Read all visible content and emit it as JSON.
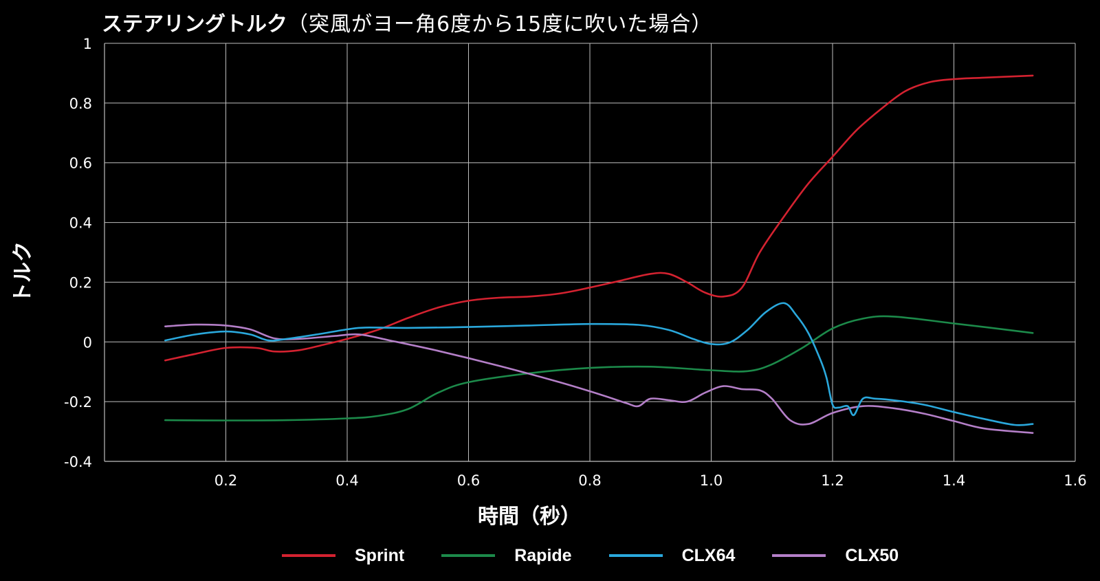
{
  "chart_data": {
    "type": "line",
    "title": "ステアリングトルク",
    "subtitle": "（突風がヨー角6度から15度に吹いた場合）",
    "xlabel": "時間（秒）",
    "ylabel": "トルク",
    "xlim": [
      0,
      1.6
    ],
    "ylim": [
      -0.4,
      1
    ],
    "x_ticks": [
      "0.2",
      "0.4",
      "0.6",
      "0.8",
      "1.0",
      "1.2",
      "1.4",
      "1.6"
    ],
    "y_ticks": [
      "-0.4",
      "-0.2",
      "0",
      "0.2",
      "0.4",
      "0.6",
      "0.8",
      "1"
    ],
    "grid": true,
    "legend_position": "bottom",
    "series": [
      {
        "name": "Sprint",
        "color": "#d42230",
        "x": [
          0.1,
          0.15,
          0.2,
          0.25,
          0.28,
          0.32,
          0.36,
          0.4,
          0.45,
          0.5,
          0.55,
          0.6,
          0.65,
          0.7,
          0.75,
          0.8,
          0.85,
          0.9,
          0.93,
          0.96,
          0.99,
          1.02,
          1.05,
          1.08,
          1.12,
          1.16,
          1.2,
          1.24,
          1.28,
          1.32,
          1.36,
          1.4,
          1.45,
          1.53
        ],
        "y": [
          -0.062,
          -0.04,
          -0.02,
          -0.02,
          -0.032,
          -0.028,
          -0.01,
          0.01,
          0.04,
          0.08,
          0.115,
          0.138,
          0.148,
          0.152,
          0.162,
          0.182,
          0.205,
          0.228,
          0.228,
          0.2,
          0.165,
          0.152,
          0.18,
          0.3,
          0.42,
          0.53,
          0.62,
          0.71,
          0.78,
          0.84,
          0.87,
          0.88,
          0.885,
          0.892
        ]
      },
      {
        "name": "Rapide",
        "color": "#1c8a4a",
        "x": [
          0.1,
          0.2,
          0.3,
          0.4,
          0.45,
          0.5,
          0.55,
          0.6,
          0.7,
          0.8,
          0.9,
          1.0,
          1.06,
          1.1,
          1.15,
          1.2,
          1.25,
          1.3,
          1.4,
          1.53
        ],
        "y": [
          -0.262,
          -0.263,
          -0.262,
          -0.256,
          -0.248,
          -0.225,
          -0.17,
          -0.135,
          -0.105,
          -0.087,
          -0.083,
          -0.095,
          -0.098,
          -0.075,
          -0.02,
          0.045,
          0.078,
          0.085,
          0.062,
          0.03
        ]
      },
      {
        "name": "CLX64",
        "color": "#2aa8dc",
        "x": [
          0.1,
          0.15,
          0.2,
          0.24,
          0.27,
          0.3,
          0.35,
          0.4,
          0.43,
          0.5,
          0.6,
          0.7,
          0.8,
          0.88,
          0.93,
          0.97,
          1.0,
          1.03,
          1.06,
          1.09,
          1.12,
          1.14,
          1.16,
          1.18,
          1.19,
          1.2,
          1.21,
          1.225,
          1.235,
          1.25,
          1.27,
          1.3,
          1.35,
          1.4,
          1.45,
          1.5,
          1.53
        ],
        "y": [
          0.005,
          0.025,
          0.035,
          0.025,
          0.005,
          0.01,
          0.025,
          0.042,
          0.048,
          0.047,
          0.05,
          0.055,
          0.06,
          0.057,
          0.04,
          0.01,
          -0.007,
          -0.002,
          0.04,
          0.1,
          0.13,
          0.09,
          0.03,
          -0.06,
          -0.12,
          -0.21,
          -0.22,
          -0.215,
          -0.245,
          -0.19,
          -0.19,
          -0.195,
          -0.21,
          -0.235,
          -0.258,
          -0.278,
          -0.275
        ]
      },
      {
        "name": "CLX50",
        "color": "#b47fc8",
        "x": [
          0.1,
          0.15,
          0.2,
          0.24,
          0.28,
          0.32,
          0.38,
          0.42,
          0.47,
          0.55,
          0.65,
          0.75,
          0.82,
          0.86,
          0.88,
          0.9,
          0.93,
          0.96,
          0.99,
          1.02,
          1.05,
          1.08,
          1.1,
          1.13,
          1.16,
          1.2,
          1.25,
          1.3,
          1.35,
          1.4,
          1.45,
          1.53
        ],
        "y": [
          0.052,
          0.058,
          0.055,
          0.042,
          0.012,
          0.01,
          0.02,
          0.025,
          0.005,
          -0.03,
          -0.08,
          -0.135,
          -0.178,
          -0.205,
          -0.215,
          -0.19,
          -0.195,
          -0.2,
          -0.17,
          -0.148,
          -0.158,
          -0.162,
          -0.19,
          -0.262,
          -0.275,
          -0.238,
          -0.215,
          -0.222,
          -0.24,
          -0.265,
          -0.29,
          -0.305
        ]
      }
    ]
  }
}
